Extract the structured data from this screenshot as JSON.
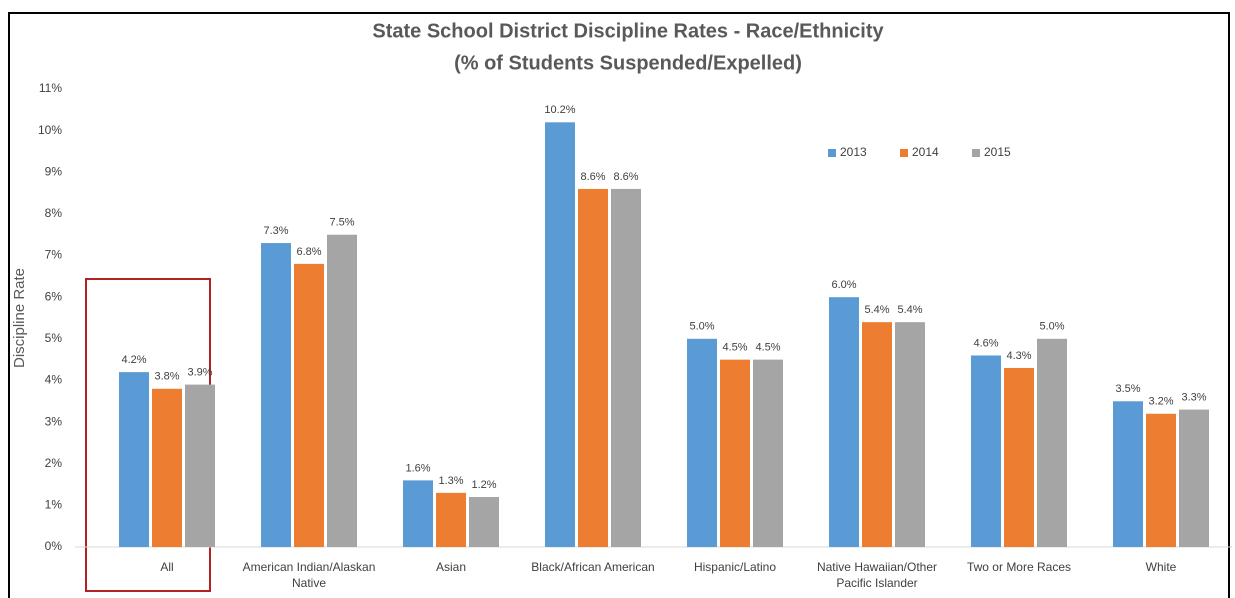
{
  "chart_data": {
    "type": "bar",
    "title": "State School District Discipline Rates - Race/Ethnicity",
    "subtitle": "(% of Students Suspended/Expelled)",
    "y_label": "Discipline Rate",
    "categories": [
      "All",
      "American Indian/Alaskan Native",
      "Asian",
      "Black/African American",
      "Hispanic/Latino",
      "Native Hawaiian/Other Pacific Islander",
      "Two or More Races",
      "White"
    ],
    "series": [
      {
        "name": "2013",
        "color": "#5b9bd5",
        "values": [
          4.2,
          7.3,
          1.6,
          10.2,
          5.0,
          6.0,
          4.6,
          3.5
        ],
        "value_labels": [
          "4.2%",
          "7.3%",
          "1.6%",
          "10.2%",
          "5.0%",
          "6.0%",
          "4.6%",
          "3.5%"
        ]
      },
      {
        "name": "2014",
        "color": "#ed7d31",
        "values": [
          3.8,
          6.8,
          1.3,
          8.6,
          4.5,
          5.4,
          4.3,
          3.2
        ],
        "value_labels": [
          "3.8%",
          "6.8%",
          "1.3%",
          "8.6%",
          "4.5%",
          "5.4%",
          "4.3%",
          "3.2%"
        ]
      },
      {
        "name": "2015",
        "color": "#a5a5a5",
        "values": [
          3.9,
          7.5,
          1.2,
          8.6,
          4.5,
          5.4,
          5.0,
          3.3
        ],
        "value_labels": [
          "3.9%",
          "7.5%",
          "1.2%",
          "8.6%",
          "4.5%",
          "5.4%",
          "5.0%",
          "3.3%"
        ]
      }
    ],
    "ylim": [
      0,
      11
    ],
    "yticks": [
      {
        "value": 0,
        "label": "0%"
      },
      {
        "value": 1,
        "label": "1%"
      },
      {
        "value": 2,
        "label": "2%"
      },
      {
        "value": 3,
        "label": "3%"
      },
      {
        "value": 4,
        "label": "4%"
      },
      {
        "value": 5,
        "label": "5%"
      },
      {
        "value": 6,
        "label": "6%"
      },
      {
        "value": 7,
        "label": "7%"
      },
      {
        "value": 8,
        "label": "8%"
      },
      {
        "value": 9,
        "label": "9%"
      },
      {
        "value": 10,
        "label": "10%"
      },
      {
        "value": 11,
        "label": "11%"
      }
    ],
    "grid": false,
    "legend": "top-right"
  }
}
